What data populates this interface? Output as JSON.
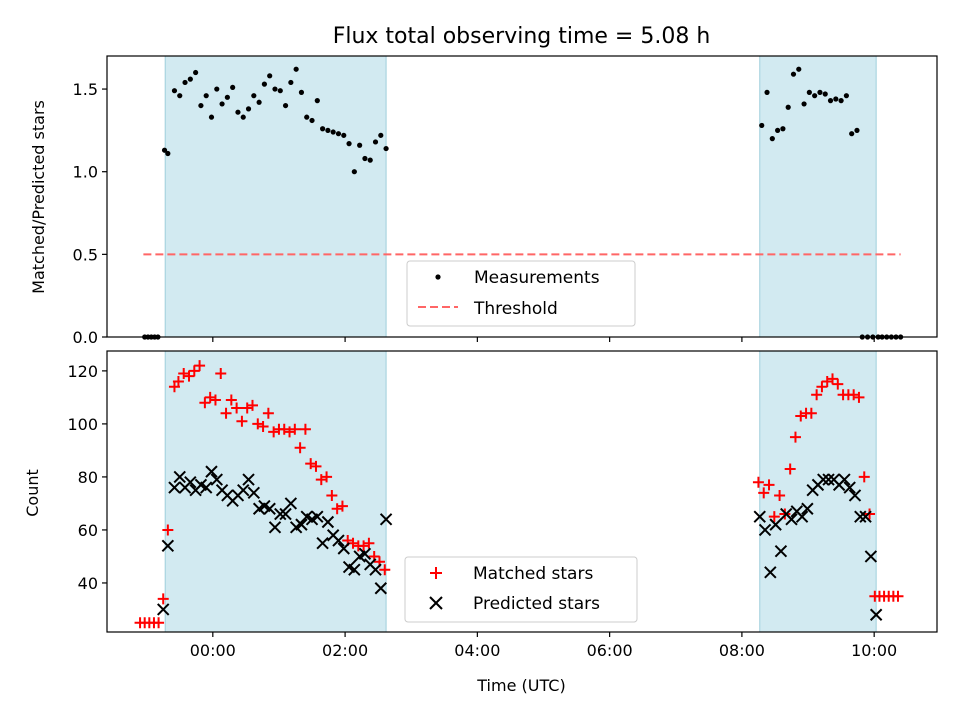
{
  "chart_data": [
    {
      "type": "scatter",
      "title": "Flux total observing time = 5.08 h",
      "xlabel": "",
      "ylabel": "Matched/Predicted stars",
      "xlim": [
        -1.6,
        10.95
      ],
      "ylim": [
        0.0,
        1.7
      ],
      "xticks": [
        0,
        2,
        4,
        6,
        8,
        10
      ],
      "xtick_labels": [],
      "yticks": [
        0.0,
        0.5,
        1.0,
        1.5
      ],
      "ytick_labels": [
        "0.0",
        "0.5",
        "1.0",
        "1.5"
      ],
      "shaded_spans": [
        [
          -0.72,
          2.62
        ],
        [
          8.27,
          10.03
        ]
      ],
      "shade_color": "#add8e6",
      "threshold": {
        "value": 0.5,
        "x_range": [
          -1.05,
          10.4
        ],
        "label": "Threshold",
        "color": "#ff6666"
      },
      "legend_position": "bottom-center",
      "series": [
        {
          "name": "Measurements",
          "color": "#000000",
          "marker": "dot",
          "x": [
            -1.03,
            -0.98,
            -0.93,
            -0.88,
            -0.83,
            -0.73,
            -0.68,
            -0.58,
            -0.5,
            -0.42,
            -0.34,
            -0.26,
            -0.18,
            -0.1,
            -0.02,
            0.06,
            0.14,
            0.22,
            0.3,
            0.38,
            0.46,
            0.54,
            0.62,
            0.7,
            0.78,
            0.86,
            0.94,
            1.02,
            1.1,
            1.18,
            1.26,
            1.34,
            1.42,
            1.5,
            1.58,
            1.66,
            1.74,
            1.82,
            1.9,
            1.98,
            2.06,
            2.14,
            2.22,
            2.3,
            2.38,
            2.46,
            2.54,
            2.62,
            8.3,
            8.38,
            8.46,
            8.54,
            8.62,
            8.7,
            8.78,
            8.86,
            8.94,
            9.02,
            9.1,
            9.18,
            9.26,
            9.34,
            9.42,
            9.5,
            9.58,
            9.66,
            9.74,
            9.82,
            9.9,
            9.98,
            10.06,
            10.12,
            10.19,
            10.26,
            10.33,
            10.4
          ],
          "y": [
            0,
            0,
            0,
            0,
            0,
            1.13,
            1.11,
            1.49,
            1.46,
            1.54,
            1.56,
            1.6,
            1.4,
            1.46,
            1.33,
            1.5,
            1.41,
            1.45,
            1.51,
            1.36,
            1.33,
            1.38,
            1.46,
            1.42,
            1.53,
            1.58,
            1.5,
            1.49,
            1.4,
            1.54,
            1.62,
            1.48,
            1.33,
            1.31,
            1.43,
            1.26,
            1.25,
            1.24,
            1.23,
            1.22,
            1.17,
            1.0,
            1.16,
            1.08,
            1.07,
            1.18,
            1.22,
            1.14,
            1.28,
            1.48,
            1.2,
            1.25,
            1.26,
            1.39,
            1.59,
            1.62,
            1.41,
            1.48,
            1.46,
            1.48,
            1.47,
            1.43,
            1.44,
            1.43,
            1.46,
            1.23,
            1.25,
            0,
            0,
            0,
            0,
            0,
            0,
            0,
            0,
            0
          ]
        }
      ]
    },
    {
      "type": "scatter",
      "title": "",
      "xlabel": "Time (UTC)",
      "ylabel": "Count",
      "xlim": [
        -1.6,
        10.95
      ],
      "ylim": [
        21.5,
        127.5
      ],
      "xticks": [
        0,
        2,
        4,
        6,
        8,
        10
      ],
      "xtick_labels": [
        "00:00",
        "02:00",
        "04:00",
        "06:00",
        "08:00",
        "10:00"
      ],
      "yticks": [
        40,
        60,
        80,
        100,
        120
      ],
      "ytick_labels": [
        "40",
        "60",
        "80",
        "100",
        "120"
      ],
      "shaded_spans": [
        [
          -0.72,
          2.62
        ],
        [
          8.27,
          10.03
        ]
      ],
      "shade_color": "#add8e6",
      "legend_position": "bottom-center",
      "series": [
        {
          "name": "Matched stars",
          "color": "#ff0000",
          "marker": "plus",
          "x": [
            -1.1,
            -1.03,
            -0.96,
            -0.89,
            -0.82,
            -0.75,
            -0.68,
            -0.58,
            -0.52,
            -0.44,
            -0.36,
            -0.28,
            -0.2,
            -0.12,
            -0.04,
            0.04,
            0.12,
            0.2,
            0.28,
            0.36,
            0.44,
            0.52,
            0.6,
            0.68,
            0.76,
            0.84,
            0.92,
            1.0,
            1.08,
            1.16,
            1.24,
            1.32,
            1.4,
            1.48,
            1.56,
            1.64,
            1.72,
            1.8,
            1.88,
            1.96,
            2.04,
            2.12,
            2.2,
            2.28,
            2.36,
            2.44,
            2.52,
            2.6,
            8.25,
            8.33,
            8.41,
            8.49,
            8.57,
            8.65,
            8.73,
            8.81,
            8.89,
            8.97,
            9.05,
            9.13,
            9.21,
            9.29,
            9.37,
            9.45,
            9.53,
            9.61,
            9.69,
            9.77,
            9.85,
            9.93,
            10.01,
            10.08,
            10.15,
            10.22,
            10.29,
            10.36
          ],
          "y": [
            25,
            25,
            25,
            25,
            25,
            34,
            60,
            114,
            116,
            119,
            118,
            120,
            122,
            108,
            110,
            109,
            119,
            104,
            109,
            106,
            101,
            106,
            107,
            100,
            99,
            104,
            97,
            98,
            98,
            97,
            98,
            91,
            98,
            85,
            84,
            79,
            80,
            73,
            68,
            69,
            56,
            55,
            54,
            54,
            55,
            50,
            48,
            45,
            78,
            74,
            77,
            65,
            73,
            66,
            83,
            95,
            103,
            104,
            104,
            111,
            114,
            116,
            117,
            115,
            111,
            111,
            111,
            110,
            80,
            66,
            35,
            35,
            35,
            35,
            35,
            35
          ]
        },
        {
          "name": "Predicted stars",
          "color": "#000000",
          "marker": "x",
          "x": [
            -0.75,
            -0.68,
            -0.58,
            -0.5,
            -0.42,
            -0.34,
            -0.26,
            -0.18,
            -0.1,
            -0.02,
            0.06,
            0.14,
            0.22,
            0.3,
            0.38,
            0.46,
            0.54,
            0.62,
            0.7,
            0.78,
            0.86,
            0.94,
            1.02,
            1.1,
            1.18,
            1.26,
            1.34,
            1.42,
            1.5,
            1.58,
            1.66,
            1.74,
            1.82,
            1.9,
            1.98,
            2.06,
            2.14,
            2.22,
            2.3,
            2.38,
            2.46,
            2.54,
            2.62,
            8.27,
            8.35,
            8.43,
            8.51,
            8.59,
            8.67,
            8.75,
            8.83,
            8.91,
            8.99,
            9.07,
            9.15,
            9.23,
            9.31,
            9.39,
            9.47,
            9.55,
            9.63,
            9.71,
            9.79,
            9.87,
            9.95,
            10.03
          ],
          "y": [
            30,
            54,
            76,
            80,
            76,
            78,
            75,
            77,
            76,
            82,
            79,
            75,
            73,
            71,
            73,
            75,
            79,
            74,
            68,
            69,
            68,
            61,
            66,
            66,
            70,
            61,
            62,
            65,
            64,
            65,
            55,
            63,
            58,
            56,
            53,
            46,
            45,
            50,
            51,
            47,
            45,
            38,
            64,
            65,
            60,
            44,
            62,
            52,
            66,
            64,
            67,
            65,
            68,
            75,
            77,
            79,
            79,
            79,
            77,
            79,
            76,
            73,
            65,
            65,
            50,
            28
          ]
        }
      ]
    }
  ]
}
